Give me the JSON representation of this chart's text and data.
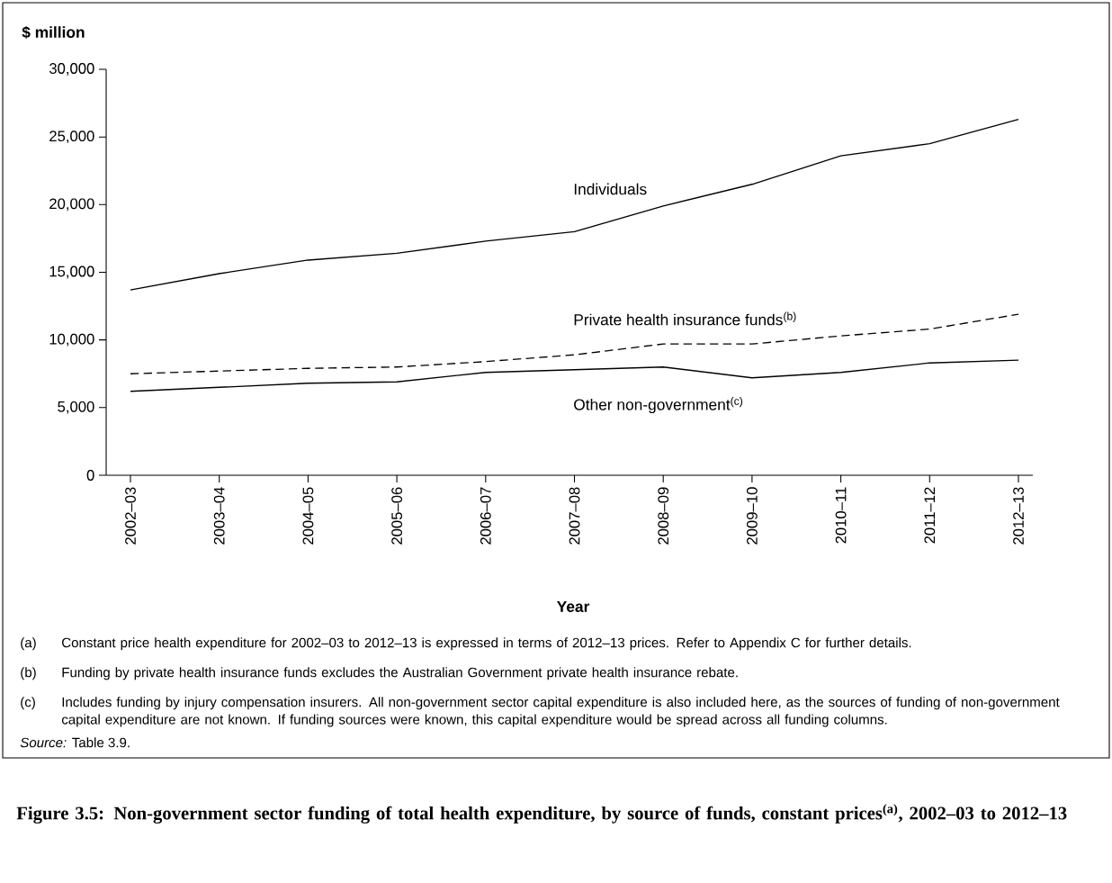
{
  "chart_data": {
    "type": "line",
    "title": "Figure 3.5: Non-government sector funding of total health expenditure, by source of funds, constant prices$^{(a)}$, 2002–03 to 2012–13",
    "xlabel": "Year",
    "ylabel": "$ million",
    "categories": [
      "2002–03",
      "2003–04",
      "2004–05",
      "2005–06",
      "2006–07",
      "2007–08",
      "2008–09",
      "2009–10",
      "2010–11",
      "2011–12",
      "2012–13"
    ],
    "series": [
      {
        "name": "Individuals",
        "color": "#000000",
        "line_style": "solid",
        "values": [
          13700,
          14900,
          15900,
          16400,
          17300,
          18000,
          19900,
          21500,
          23600,
          24500,
          26300
        ]
      },
      {
        "name": "Private health insurance funds$^{(b)}$",
        "color": "#000000",
        "line_style": "dashed",
        "values": [
          7500,
          7700,
          7900,
          8000,
          8400,
          8900,
          9700,
          9700,
          10300,
          10800,
          11900
        ]
      },
      {
        "name": "Other non-government$^{(c)}$",
        "color": "#000000",
        "line_style": "solid",
        "values": [
          6200,
          6500,
          6800,
          6900,
          7600,
          7800,
          8000,
          7200,
          7600,
          8300,
          8500
        ]
      }
    ],
    "ylim": [
      0,
      30000
    ],
    "yticks": [
      0,
      {
        "value": 5000,
        "label": "5,000"
      },
      {
        "value": 10000,
        "label": "10,000"
      },
      {
        "value": 15000,
        "label": "15,000"
      },
      {
        "value": 20000,
        "label": "20,000"
      },
      {
        "value": 25000,
        "label": "25,000"
      },
      {
        "value": 30000,
        "label": "30,000"
      }
    ],
    "marker": "none",
    "annotations": [
      "(a)",
      "Constant price health expenditure for 2002–03 to 2012–13 is expressed in terms of 2012–13 prices. Refer to Appendix C for further details.",
      "(b)",
      "Funding by private health insurance funds excludes the Australian Government private health insurance rebate.",
      "(c)",
      "Includes funding by injury compensation insurers. All non-government sector capital expenditure is also included here, as the sources of funding of non-government capital expenditure are not known. If funding sources were known, this capital expenditure would be spread across all funding columns.",
      "*Source:* Table 3.9."
    ]
  }
}
